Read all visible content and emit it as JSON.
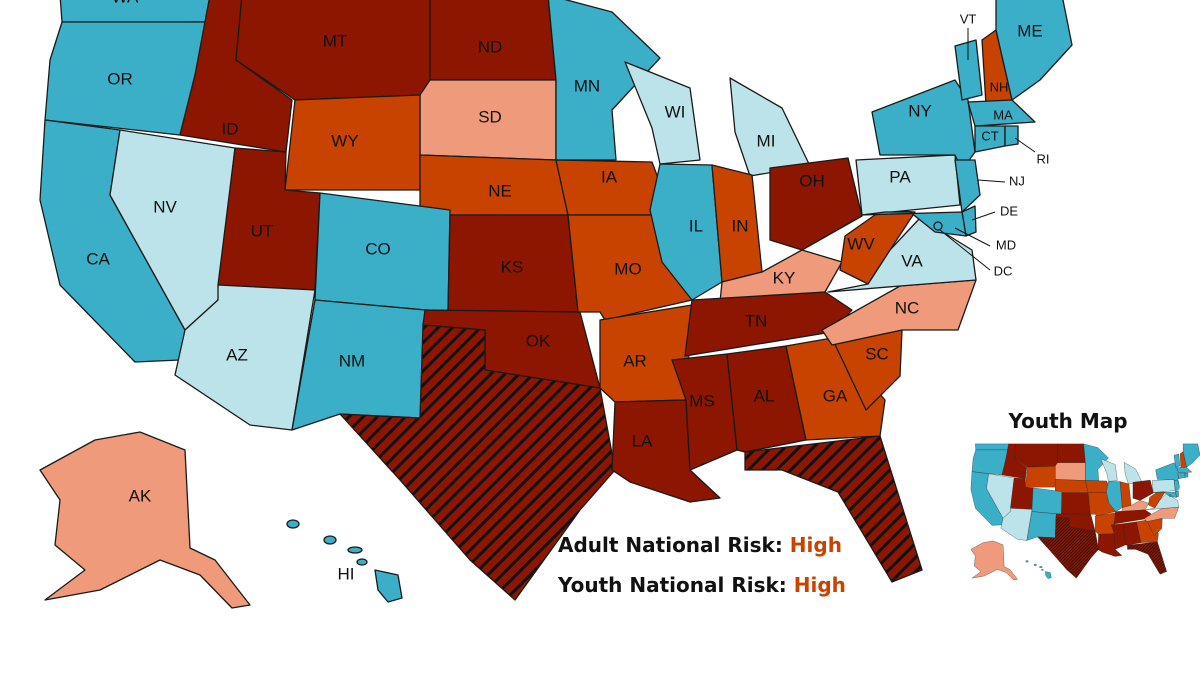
{
  "states": [
    {
      "label": "WA",
      "color": "#3aafc7"
    },
    {
      "label": "OR",
      "color": "#3aafc7"
    },
    {
      "label": "ID",
      "color": "#8c1600"
    },
    {
      "label": "MT",
      "color": "#8c1600"
    },
    {
      "label": "ND",
      "color": "#8c1600"
    },
    {
      "label": "SD",
      "color": "#ee9a7b"
    },
    {
      "label": "WY",
      "color": "#c84300"
    },
    {
      "label": "NE",
      "color": "#c84300"
    },
    {
      "label": "CA",
      "color": "#3aafc7"
    },
    {
      "label": "NV",
      "color": "#bde3ea"
    },
    {
      "label": "UT",
      "color": "#8c1600"
    },
    {
      "label": "CO",
      "color": "#3aafc7"
    },
    {
      "label": "AZ",
      "color": "#bde3ea"
    },
    {
      "label": "NM",
      "color": "#3aafc7"
    },
    {
      "label": "KS",
      "color": "#8c1600"
    },
    {
      "label": "OK",
      "color": "#8c1600"
    },
    {
      "color": "#8c1600",
      "hatched": true
    },
    {
      "label": "MN",
      "color": "#3aafc7"
    },
    {
      "label": "IA",
      "color": "#c84300"
    },
    {
      "label": "MO",
      "color": "#c84300"
    },
    {
      "label": "AR",
      "color": "#c84300"
    },
    {
      "label": "LA",
      "color": "#8c1600"
    },
    {
      "label": "WI",
      "color": "#bde3ea"
    },
    {
      "label": "MI",
      "color": "#bde3ea"
    },
    {
      "label": "IL",
      "color": "#3aafc7"
    },
    {
      "label": "IN",
      "color": "#c84300"
    },
    {
      "label": "OH",
      "color": "#8c1600"
    },
    {
      "label": "KY",
      "color": "#ee9a7b"
    },
    {
      "label": "TN",
      "color": "#8c1600"
    },
    {
      "label": "MS",
      "color": "#8c1600"
    },
    {
      "label": "AL",
      "color": "#8c1600"
    },
    {
      "label": "GA",
      "color": "#c84300"
    },
    {
      "color": "#8c1600",
      "hatched": true
    },
    {
      "label": "SC",
      "color": "#c84300"
    },
    {
      "label": "NC",
      "color": "#ee9a7b"
    },
    {
      "label": "VA",
      "color": "#bde3ea"
    },
    {
      "label": "WV",
      "color": "#c84300"
    },
    {
      "label": "PA",
      "color": "#bde3ea"
    },
    {
      "label": "NY",
      "color": "#3aafc7"
    },
    {
      "label": "NJ",
      "color": "#3aafc7"
    },
    {
      "label": "DE",
      "color": "#3aafc7"
    },
    {
      "label": "MD",
      "color": "#3aafc7"
    },
    {
      "label": "DC",
      "color": "#3aafc7"
    },
    {
      "label": "VT",
      "color": "#3aafc7"
    },
    {
      "label": "NH",
      "color": "#c84300"
    },
    {
      "label": "ME",
      "color": "#3aafc7"
    },
    {
      "label": "MA",
      "color": "#3aafc7"
    },
    {
      "label": "CT",
      "color": "#3aafc7"
    },
    {
      "label": "RI",
      "color": "#3aafc7"
    },
    {
      "label": "AK",
      "color": "#ee9a7b"
    },
    {
      "label": "HI",
      "color": "#3aafc7"
    }
  ],
  "national_risk": {
    "adult_label": "Adult National Risk:",
    "adult_value": "High",
    "youth_label": "Youth National Risk:",
    "youth_value": "High"
  },
  "youth_map": {
    "title": "Youth Map"
  }
}
